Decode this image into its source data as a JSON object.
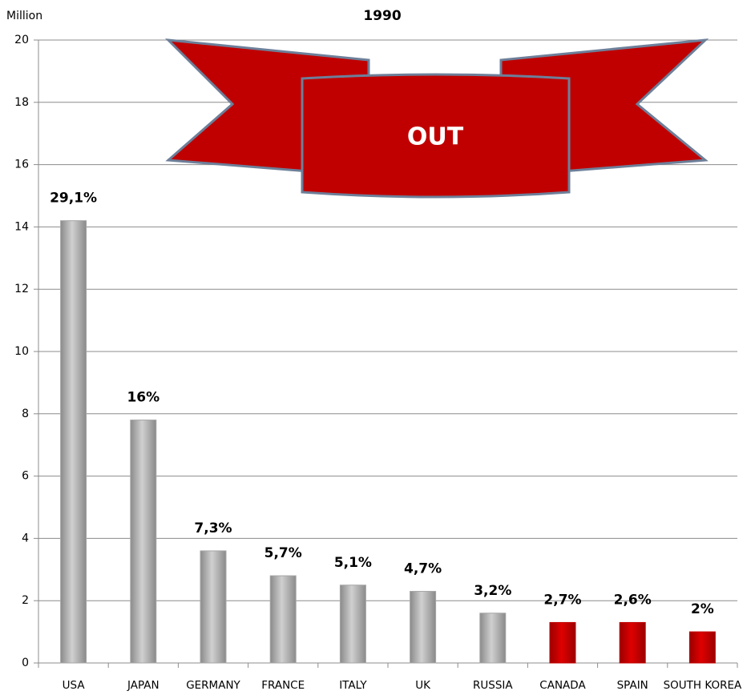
{
  "chart_data": {
    "type": "bar",
    "title": "1990",
    "y_axis_label": "Million",
    "annotation": "OUT",
    "categories": [
      "USA",
      "JAPAN",
      "GERMANY",
      "FRANCE",
      "ITALY",
      "UK",
      "RUSSIA",
      "CANADA",
      "SPAIN",
      "SOUTH KOREA"
    ],
    "values": [
      14.2,
      7.8,
      3.6,
      2.8,
      2.5,
      2.3,
      1.6,
      1.3,
      1.3,
      1.0
    ],
    "labels": [
      "29,1%",
      "16%",
      "7,3%",
      "5,7%",
      "5,1%",
      "4,7%",
      "3,2%",
      "2,7%",
      "2,6%",
      "2%"
    ],
    "colors": [
      "#a6a6a6",
      "#a6a6a6",
      "#a6a6a6",
      "#a6a6a6",
      "#a6a6a6",
      "#a6a6a6",
      "#a6a6a6",
      "#c00000",
      "#c00000",
      "#c00000"
    ],
    "ylim": [
      0,
      20
    ],
    "yticks": [
      0,
      2,
      4,
      6,
      8,
      10,
      12,
      14,
      16,
      18,
      20
    ],
    "grid": true
  }
}
